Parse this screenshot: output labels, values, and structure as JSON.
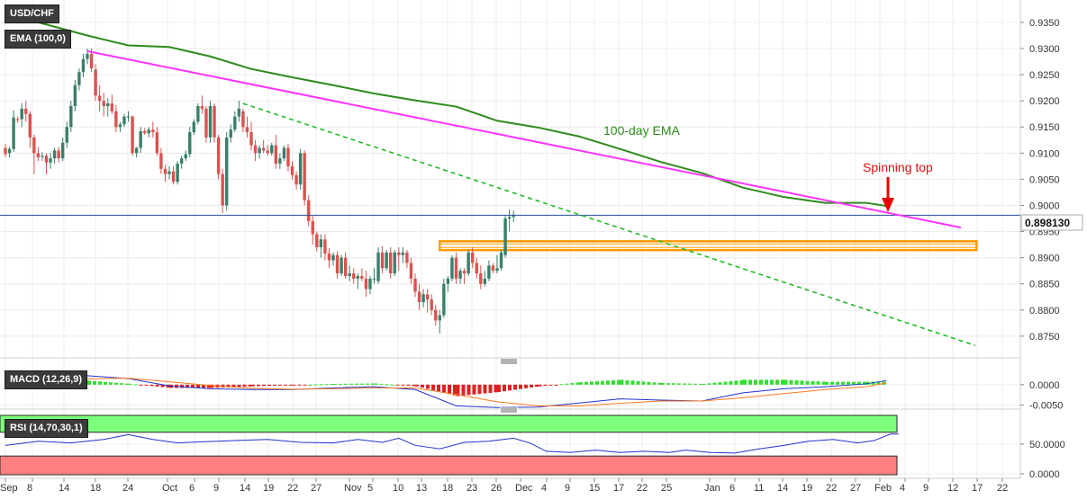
{
  "instrument_label": "USD/CHF",
  "ema_label": "EMA (100,0)",
  "macd_label": "MACD (12,26,9)",
  "rsi_label": "RSI (14,70,30,1)",
  "last_price": "0.898130",
  "annotations": {
    "ema": "100-day EMA",
    "spinning_top": "Spinning top"
  },
  "colors": {
    "bull": "#3a7f6c",
    "bear": "#d9534f",
    "ema": "#2e8b1c",
    "trendline": "#ff33ff",
    "support_dash": "#22bb22",
    "support_zone": "#ff9900",
    "price_line": "#264f8f",
    "arrow": "#ee0000",
    "macd_line": "#2233cc",
    "signal_line": "#ff7a22",
    "hist_pos": "#33dd33",
    "hist_neg": "#dd2222",
    "rsi_line": "#2233cc",
    "rsi_overbought": "#7cff7c",
    "rsi_oversold": "#ff8080"
  },
  "chart_data": [
    {
      "type": "candlestick",
      "title": "USD/CHF",
      "x_ticks": [
        "Sep",
        "8",
        "14",
        "18",
        "24",
        "Oct",
        "6",
        "9",
        "14",
        "19",
        "22",
        "27",
        "Nov",
        "5",
        "10",
        "13",
        "18",
        "23",
        "26",
        "Dec",
        "4",
        "9",
        "15",
        "17",
        "22",
        "25",
        "Jan",
        "6",
        "11",
        "14",
        "19",
        "22",
        "27",
        "Feb",
        "4",
        "9",
        "12",
        "17",
        "22"
      ],
      "y_ticks": [
        "0.8750",
        "0.8800",
        "0.8850",
        "0.8900",
        "0.8950",
        "0.9000",
        "0.9050",
        "0.9100",
        "0.9150",
        "0.9200",
        "0.9250",
        "0.9300",
        "0.9350"
      ],
      "ylim": [
        0.8725,
        0.9375
      ],
      "last_price": 0.89813,
      "ohlc": [
        [
          0.911,
          0.9118,
          0.9092,
          0.9098
        ],
        [
          0.91,
          0.9112,
          0.9092,
          0.9108
        ],
        [
          0.9108,
          0.9182,
          0.9102,
          0.9168
        ],
        [
          0.9165,
          0.917,
          0.9158,
          0.9164
        ],
        [
          0.9165,
          0.9196,
          0.915,
          0.9185
        ],
        [
          0.9185,
          0.92,
          0.916,
          0.9175
        ],
        [
          0.9175,
          0.918,
          0.911,
          0.913
        ],
        [
          0.913,
          0.9135,
          0.906,
          0.91
        ],
        [
          0.91,
          0.9112,
          0.9085,
          0.9092
        ],
        [
          0.9093,
          0.9102,
          0.9085,
          0.9095
        ],
        [
          0.9095,
          0.91,
          0.906,
          0.9082
        ],
        [
          0.9082,
          0.91,
          0.907,
          0.909
        ],
        [
          0.909,
          0.911,
          0.908,
          0.9105
        ],
        [
          0.9105,
          0.9112,
          0.9082,
          0.909
        ],
        [
          0.909,
          0.913,
          0.9085,
          0.912
        ],
        [
          0.912,
          0.916,
          0.911,
          0.915
        ],
        [
          0.915,
          0.92,
          0.914,
          0.919
        ],
        [
          0.919,
          0.924,
          0.918,
          0.923
        ],
        [
          0.923,
          0.9262,
          0.922,
          0.9255
        ],
        [
          0.9255,
          0.929,
          0.9245,
          0.928
        ],
        [
          0.928,
          0.93,
          0.927,
          0.929
        ],
        [
          0.929,
          0.93,
          0.9255,
          0.9262
        ],
        [
          0.926,
          0.927,
          0.92,
          0.921
        ],
        [
          0.921,
          0.923,
          0.918,
          0.92
        ],
        [
          0.92,
          0.9215,
          0.917,
          0.919
        ],
        [
          0.919,
          0.9205,
          0.917,
          0.9195
        ],
        [
          0.9195,
          0.9212,
          0.9175,
          0.918
        ],
        [
          0.918,
          0.9192,
          0.914,
          0.915
        ],
        [
          0.915,
          0.916,
          0.914,
          0.9155
        ],
        [
          0.9155,
          0.9175,
          0.915,
          0.917
        ],
        [
          0.917,
          0.918,
          0.916,
          0.917
        ],
        [
          0.917,
          0.9172,
          0.9095,
          0.91
        ],
        [
          0.91,
          0.9112,
          0.9092,
          0.911
        ],
        [
          0.911,
          0.915,
          0.91,
          0.9142
        ],
        [
          0.9142,
          0.9148,
          0.9135,
          0.9138
        ],
        [
          0.9138,
          0.915,
          0.913,
          0.9145
        ],
        [
          0.9145,
          0.916,
          0.913,
          0.914
        ],
        [
          0.914,
          0.915,
          0.9095,
          0.91
        ],
        [
          0.91,
          0.911,
          0.906,
          0.907
        ],
        [
          0.907,
          0.9078,
          0.9045,
          0.906
        ],
        [
          0.906,
          0.9075,
          0.905,
          0.9065
        ],
        [
          0.9065,
          0.9075,
          0.904,
          0.9045
        ],
        [
          0.9045,
          0.9085,
          0.904,
          0.908
        ],
        [
          0.908,
          0.9095,
          0.907,
          0.909
        ],
        [
          0.909,
          0.9105,
          0.9085,
          0.9098
        ],
        [
          0.9098,
          0.915,
          0.9092,
          0.914
        ],
        [
          0.914,
          0.9165,
          0.9135,
          0.916
        ],
        [
          0.916,
          0.9195,
          0.9155,
          0.919
        ],
        [
          0.919,
          0.921,
          0.9175,
          0.9185
        ],
        [
          0.9185,
          0.919,
          0.912,
          0.913
        ],
        [
          0.913,
          0.92,
          0.912,
          0.919
        ],
        [
          0.919,
          0.9195,
          0.912,
          0.913
        ],
        [
          0.913,
          0.9135,
          0.905,
          0.906
        ],
        [
          0.906,
          0.907,
          0.8985,
          0.9
        ],
        [
          0.9,
          0.914,
          0.899,
          0.913
        ],
        [
          0.913,
          0.9155,
          0.912,
          0.9145
        ],
        [
          0.9145,
          0.918,
          0.914,
          0.917
        ],
        [
          0.917,
          0.92,
          0.916,
          0.9185
        ],
        [
          0.918,
          0.9185,
          0.914,
          0.915
        ],
        [
          0.915,
          0.917,
          0.913,
          0.914
        ],
        [
          0.914,
          0.916,
          0.9105,
          0.9115
        ],
        [
          0.9115,
          0.9125,
          0.9085,
          0.91
        ],
        [
          0.91,
          0.9115,
          0.909,
          0.911
        ],
        [
          0.911,
          0.9125,
          0.91,
          0.9105
        ],
        [
          0.9105,
          0.9115,
          0.9095,
          0.91
        ],
        [
          0.91,
          0.912,
          0.9095,
          0.9115
        ],
        [
          0.9115,
          0.9135,
          0.907,
          0.908
        ],
        [
          0.908,
          0.91,
          0.907,
          0.909
        ],
        [
          0.909,
          0.9115,
          0.9085,
          0.911
        ],
        [
          0.911,
          0.9118,
          0.9065,
          0.9075
        ],
        [
          0.9075,
          0.9085,
          0.905,
          0.9058
        ],
        [
          0.9058,
          0.9065,
          0.903,
          0.904
        ],
        [
          0.904,
          0.9108,
          0.903,
          0.91
        ],
        [
          0.91,
          0.9105,
          0.9,
          0.901
        ],
        [
          0.901,
          0.902,
          0.896,
          0.897
        ],
        [
          0.897,
          0.898,
          0.8925,
          0.8945
        ],
        [
          0.8945,
          0.895,
          0.8912,
          0.892
        ],
        [
          0.892,
          0.8945,
          0.89,
          0.8935
        ],
        [
          0.8935,
          0.8945,
          0.8895,
          0.8908
        ],
        [
          0.8908,
          0.8918,
          0.888,
          0.8895
        ],
        [
          0.8895,
          0.891,
          0.8885,
          0.8905
        ],
        [
          0.8905,
          0.8912,
          0.886,
          0.887
        ],
        [
          0.887,
          0.8905,
          0.8865,
          0.89
        ],
        [
          0.89,
          0.891,
          0.886,
          0.8865
        ],
        [
          0.8865,
          0.8885,
          0.8855,
          0.887
        ],
        [
          0.887,
          0.888,
          0.885,
          0.886
        ],
        [
          0.886,
          0.887,
          0.884,
          0.8865
        ],
        [
          0.8865,
          0.888,
          0.8855,
          0.886
        ],
        [
          0.886,
          0.8875,
          0.8825,
          0.884
        ],
        [
          0.884,
          0.8865,
          0.883,
          0.886
        ],
        [
          0.886,
          0.888,
          0.885,
          0.886
        ],
        [
          0.8855,
          0.892,
          0.885,
          0.891
        ],
        [
          0.891,
          0.8922,
          0.887,
          0.888
        ],
        [
          0.888,
          0.8915,
          0.8875,
          0.891
        ],
        [
          0.891,
          0.892,
          0.886,
          0.887
        ],
        [
          0.887,
          0.8915,
          0.8865,
          0.891
        ],
        [
          0.891,
          0.892,
          0.8875,
          0.8905
        ],
        [
          0.8905,
          0.892,
          0.889,
          0.891
        ],
        [
          0.891,
          0.8915,
          0.888,
          0.889
        ],
        [
          0.889,
          0.89,
          0.885,
          0.886
        ],
        [
          0.886,
          0.887,
          0.8825,
          0.8835
        ],
        [
          0.8835,
          0.885,
          0.88,
          0.8815
        ],
        [
          0.8815,
          0.884,
          0.8805,
          0.883
        ],
        [
          0.883,
          0.884,
          0.8795,
          0.882
        ],
        [
          0.882,
          0.883,
          0.879,
          0.88
        ],
        [
          0.88,
          0.881,
          0.877,
          0.878
        ],
        [
          0.878,
          0.88,
          0.8755,
          0.879
        ],
        [
          0.879,
          0.886,
          0.8785,
          0.885
        ],
        [
          0.885,
          0.8865,
          0.8835,
          0.886
        ],
        [
          0.886,
          0.8905,
          0.8855,
          0.89
        ],
        [
          0.89,
          0.891,
          0.885,
          0.886
        ],
        [
          0.886,
          0.888,
          0.885,
          0.8875
        ],
        [
          0.8875,
          0.888,
          0.885,
          0.887
        ],
        [
          0.887,
          0.8915,
          0.8865,
          0.891
        ],
        [
          0.891,
          0.892,
          0.888,
          0.889
        ],
        [
          0.889,
          0.89,
          0.886,
          0.887
        ],
        [
          0.887,
          0.8885,
          0.884,
          0.885
        ],
        [
          0.885,
          0.8875,
          0.8845,
          0.886
        ],
        [
          0.886,
          0.8895,
          0.8855,
          0.8885
        ],
        [
          0.8885,
          0.889,
          0.887,
          0.8875
        ],
        [
          0.8875,
          0.8905,
          0.887,
          0.888
        ],
        [
          0.888,
          0.8915,
          0.8875,
          0.891
        ],
        [
          0.8905,
          0.898,
          0.89,
          0.8975
        ],
        [
          0.8975,
          0.8992,
          0.895,
          0.8978
        ],
        [
          0.8978,
          0.899,
          0.8968,
          0.8981
        ]
      ],
      "ema_100": [
        0.9366,
        0.9346,
        0.9325,
        0.9306,
        0.9303,
        0.9285,
        0.9261,
        0.9245,
        0.923,
        0.9214,
        0.9201,
        0.9189,
        0.9162,
        0.9149,
        0.9132,
        0.9108,
        0.9083,
        0.9062,
        0.9034,
        0.9016,
        0.9005,
        0.9005,
        0.8999
      ],
      "ema_x": [
        0,
        10,
        20,
        30,
        40,
        50,
        60,
        70,
        80,
        90,
        100,
        110,
        120,
        130,
        140,
        150,
        160,
        170,
        180,
        190,
        200,
        210,
        215
      ],
      "resistance_trendline": {
        "from": [
          20,
          0.9295
        ],
        "to": [
          220,
          0.8968
        ]
      },
      "support_trendline": {
        "from": [
          58,
          0.9195
        ],
        "to": [
          218,
          0.8813
        ]
      },
      "support_zone": [
        0.8918,
        0.8928
      ]
    },
    {
      "type": "bar",
      "title": "MACD (12,26,9)",
      "y_ticks": [
        "0.0000",
        "-0.0050"
      ],
      "ylim": [
        -0.006,
        0.0035
      ],
      "series": [
        {
          "name": "MACD",
          "x": [
            0,
            10,
            20,
            30,
            40,
            50,
            60,
            70,
            80,
            90,
            100,
            110,
            120,
            130,
            140,
            150,
            160,
            170,
            180,
            190,
            200,
            210,
            215
          ],
          "values": [
            0.0,
            0.001,
            0.0022,
            0.0015,
            -0.0003,
            -0.001,
            -0.0012,
            -0.0012,
            -0.0008,
            -0.0005,
            -0.0012,
            -0.0052,
            -0.0056,
            -0.0055,
            -0.0045,
            -0.0035,
            -0.0038,
            -0.004,
            -0.002,
            -0.001,
            -0.0005,
            0.0002,
            0.001
          ]
        },
        {
          "name": "Signal",
          "x": [
            0,
            10,
            20,
            30,
            40,
            50,
            60,
            70,
            80,
            90,
            100,
            110,
            120,
            130,
            140,
            150,
            160,
            170,
            180,
            190,
            200,
            210,
            215
          ],
          "values": [
            0.0,
            0.0005,
            0.0014,
            0.0016,
            0.0007,
            -0.0002,
            -0.0009,
            -0.0011,
            -0.001,
            -0.0008,
            -0.0008,
            -0.0024,
            -0.0042,
            -0.0052,
            -0.0052,
            -0.0046,
            -0.004,
            -0.004,
            -0.0032,
            -0.0022,
            -0.0012,
            -0.0005,
            0.0004
          ]
        },
        {
          "name": "Histogram",
          "x": [
            0,
            10,
            20,
            30,
            40,
            50,
            60,
            70,
            80,
            90,
            100,
            110,
            120,
            130,
            140,
            150,
            160,
            170,
            180,
            190,
            200,
            210,
            215
          ],
          "values": [
            0.0,
            0.0005,
            0.001,
            0.0002,
            -0.0008,
            -0.0008,
            -0.0004,
            -0.0001,
            0.0002,
            0.0003,
            -0.0004,
            -0.0028,
            -0.0018,
            -0.0004,
            0.0006,
            0.0012,
            0.0004,
            0.0002,
            0.0012,
            0.0012,
            0.0007,
            0.0007,
            0.0008
          ]
        }
      ]
    },
    {
      "type": "line",
      "title": "RSI (14,70,30,1)",
      "y_ticks": [
        "50.0000",
        "0.0000"
      ],
      "ylim": [
        0,
        100
      ],
      "overbought": 70,
      "oversold": 30,
      "series": [
        {
          "name": "RSI",
          "x": [
            0,
            8,
            16,
            24,
            30,
            36,
            42,
            48,
            56,
            64,
            72,
            80,
            86,
            92,
            96,
            100,
            106,
            112,
            118,
            124,
            128,
            132,
            138,
            144,
            150,
            156,
            162,
            166,
            172,
            178,
            184,
            190,
            196,
            202,
            208,
            212,
            216,
            218
          ],
          "values": [
            48,
            55,
            52,
            58,
            66,
            58,
            52,
            54,
            56,
            58,
            53,
            52,
            58,
            53,
            60,
            48,
            42,
            53,
            55,
            60,
            52,
            38,
            36,
            40,
            36,
            38,
            36,
            40,
            36,
            35,
            42,
            48,
            55,
            58,
            52,
            56,
            67,
            67
          ]
        }
      ]
    }
  ]
}
